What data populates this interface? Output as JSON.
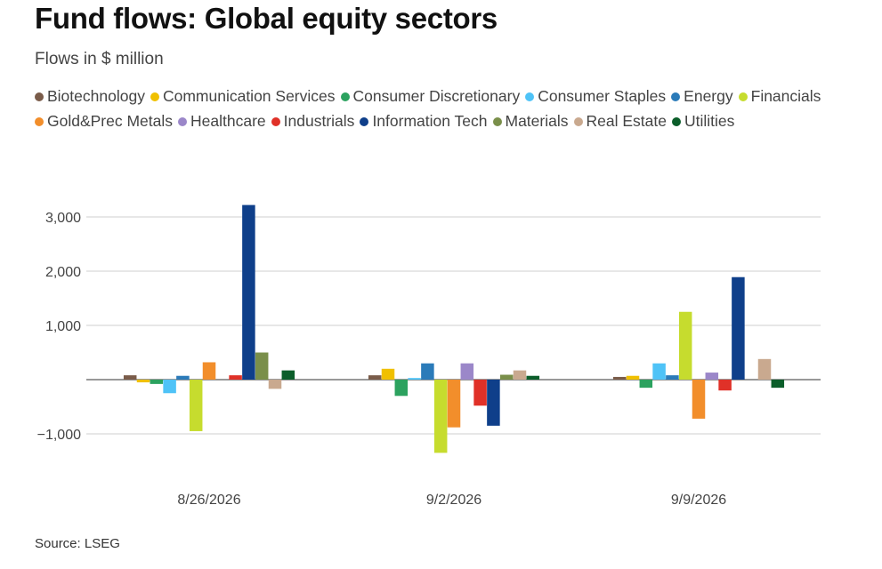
{
  "title": "Fund flows: Global equity sectors",
  "subtitle": "Flows in $ million",
  "source": "Source: LSEG",
  "chart_data": {
    "type": "bar",
    "title": "Fund flows: Global equity sectors",
    "subtitle": "Flows in $ million",
    "xlabel": "",
    "ylabel": "",
    "ylim": [
      -1500,
      3500
    ],
    "yticks": [
      -1000,
      0,
      1000,
      2000,
      3000
    ],
    "ytick_labels": [
      "−1,000",
      "",
      "1,000",
      "2,000",
      "3,000"
    ],
    "grid": true,
    "legend_position": "top",
    "categories": [
      "8/26/2026",
      "9/2/2026",
      "9/9/2026"
    ],
    "series": [
      {
        "name": "Biotechnology",
        "color": "#7a5c4a",
        "values": [
          80,
          80,
          50
        ]
      },
      {
        "name": "Communication Services",
        "color": "#f0c000",
        "values": [
          -50,
          200,
          70
        ]
      },
      {
        "name": "Consumer Discretionary",
        "color": "#2ca25f",
        "values": [
          -80,
          -300,
          -150
        ]
      },
      {
        "name": "Consumer Staples",
        "color": "#4fc3f7",
        "values": [
          -250,
          30,
          300
        ]
      },
      {
        "name": "Energy",
        "color": "#2b7bb9",
        "values": [
          70,
          300,
          80
        ]
      },
      {
        "name": "Financials",
        "color": "#c6dc2e",
        "values": [
          -950,
          -1350,
          1250
        ]
      },
      {
        "name": "Gold&Prec Metals",
        "color": "#f28e2b",
        "values": [
          320,
          -880,
          -720
        ]
      },
      {
        "name": "Healthcare",
        "color": "#9b87c9",
        "values": [
          0,
          300,
          130
        ]
      },
      {
        "name": "Industrials",
        "color": "#e03128",
        "values": [
          80,
          -480,
          -200
        ]
      },
      {
        "name": "Information Tech",
        "color": "#0f3f8a",
        "values": [
          3220,
          -850,
          1890
        ]
      },
      {
        "name": "Materials",
        "color": "#7a8f4a",
        "values": [
          500,
          90,
          0
        ]
      },
      {
        "name": "Real Estate",
        "color": "#c9a98f",
        "values": [
          -170,
          170,
          380
        ]
      },
      {
        "name": "Utilities",
        "color": "#0b5e2a",
        "values": [
          170,
          70,
          -150
        ]
      }
    ]
  }
}
